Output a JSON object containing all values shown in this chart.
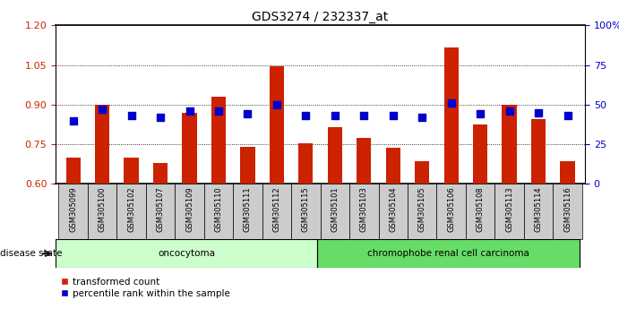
{
  "title": "GDS3274 / 232337_at",
  "samples": [
    "GSM305099",
    "GSM305100",
    "GSM305102",
    "GSM305107",
    "GSM305109",
    "GSM305110",
    "GSM305111",
    "GSM305112",
    "GSM305115",
    "GSM305101",
    "GSM305103",
    "GSM305104",
    "GSM305105",
    "GSM305106",
    "GSM305108",
    "GSM305113",
    "GSM305114",
    "GSM305116"
  ],
  "transformed_count": [
    0.7,
    0.9,
    0.7,
    0.68,
    0.87,
    0.93,
    0.74,
    1.045,
    0.755,
    0.815,
    0.775,
    0.735,
    0.685,
    1.115,
    0.825,
    0.9,
    0.845,
    0.685
  ],
  "percentile_rank": [
    40,
    47,
    43,
    42,
    46,
    46,
    44,
    50,
    43,
    43,
    43,
    43,
    42,
    51,
    44,
    46,
    45,
    43
  ],
  "group_labels": [
    "oncocytoma",
    "chromophobe renal cell carcinoma"
  ],
  "group_sizes": [
    9,
    9
  ],
  "ylim_left": [
    0.6,
    1.2
  ],
  "ylim_right": [
    0,
    100
  ],
  "yticks_left": [
    0.6,
    0.75,
    0.9,
    1.05,
    1.2
  ],
  "yticks_right": [
    0,
    25,
    50,
    75,
    100
  ],
  "ytick_labels_right": [
    "0",
    "25",
    "50",
    "75",
    "100%"
  ],
  "bar_color": "#cc2200",
  "dot_color": "#0000cc",
  "group1_bg": "#ccffcc",
  "group2_bg": "#66dd66",
  "disease_state_label": "disease state",
  "legend_bar_label": "transformed count",
  "legend_dot_label": "percentile rank within the sample",
  "bar_width": 0.5,
  "dot_size": 30,
  "baseline": 0.6,
  "tick_label_bg": "#cccccc"
}
